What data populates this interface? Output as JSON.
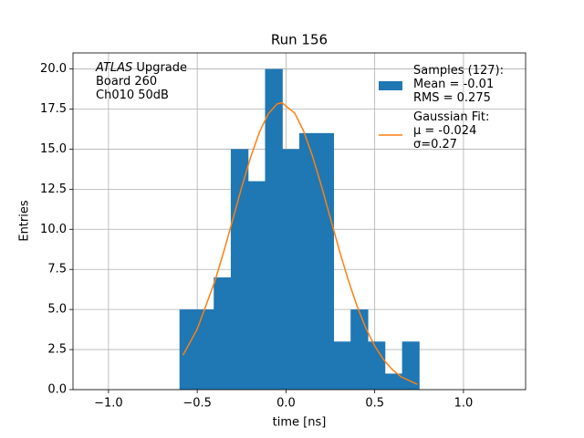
{
  "chart_data": {
    "type": "histogram",
    "title": "Run 156",
    "xlabel": "time [ns]",
    "ylabel": "Entries",
    "annotation": {
      "experiment": "ATLAS",
      "text": "Upgrade\nBoard 260\nCh010 50dB"
    },
    "xlim": [
      -1.2,
      1.35
    ],
    "ylim": [
      0,
      21
    ],
    "xticks": [
      {
        "value": -1.0,
        "label": "−1.0"
      },
      {
        "value": -0.5,
        "label": "−0.5"
      },
      {
        "value": 0.0,
        "label": "0.0"
      },
      {
        "value": 0.5,
        "label": "0.5"
      },
      {
        "value": 1.0,
        "label": "1.0"
      }
    ],
    "yticks": [
      {
        "value": 0,
        "label": "0.0"
      },
      {
        "value": 2.5,
        "label": "2.5"
      },
      {
        "value": 5,
        "label": "5.0"
      },
      {
        "value": 7.5,
        "label": "7.5"
      },
      {
        "value": 10,
        "label": "10.0"
      },
      {
        "value": 12.5,
        "label": "12.5"
      },
      {
        "value": 15,
        "label": "15.0"
      },
      {
        "value": 17.5,
        "label": "17.5"
      },
      {
        "value": 20,
        "label": "20.0"
      }
    ],
    "grid": true,
    "legend": "upper right",
    "series": [
      {
        "name": "Samples (127):\nMean = -0.01\nRMS = 0.275",
        "type": "histogram",
        "color": "#1f77b4",
        "bins": [
          -0.6,
          -0.504,
          -0.407,
          -0.311,
          -0.214,
          -0.118,
          -0.021,
          0.075,
          0.171,
          0.268,
          0.364,
          0.461,
          0.557,
          0.654,
          0.75
        ],
        "values": [
          5,
          5,
          7,
          15,
          13,
          20,
          15,
          16,
          16,
          3,
          5,
          3,
          1,
          3
        ]
      },
      {
        "name": "Gaussian Fit:\nμ = -0.024\nσ=0.27",
        "type": "line",
        "color": "#ff7f0e",
        "x": [
          -0.58,
          -0.5,
          -0.4,
          -0.35,
          -0.3,
          -0.25,
          -0.2,
          -0.15,
          -0.1,
          -0.05,
          -0.024,
          0.05,
          0.1,
          0.15,
          0.2,
          0.25,
          0.3,
          0.35,
          0.4,
          0.45,
          0.5,
          0.55,
          0.6,
          0.65,
          0.74
        ],
        "values": [
          2.15,
          3.78,
          6.78,
          8.63,
          10.6,
          12.61,
          14.47,
          16.05,
          17.2,
          17.82,
          17.9,
          17.24,
          16.11,
          14.54,
          12.69,
          10.7,
          8.71,
          6.86,
          5.22,
          3.83,
          2.72,
          1.87,
          1.24,
          0.79,
          0.33
        ]
      }
    ]
  }
}
